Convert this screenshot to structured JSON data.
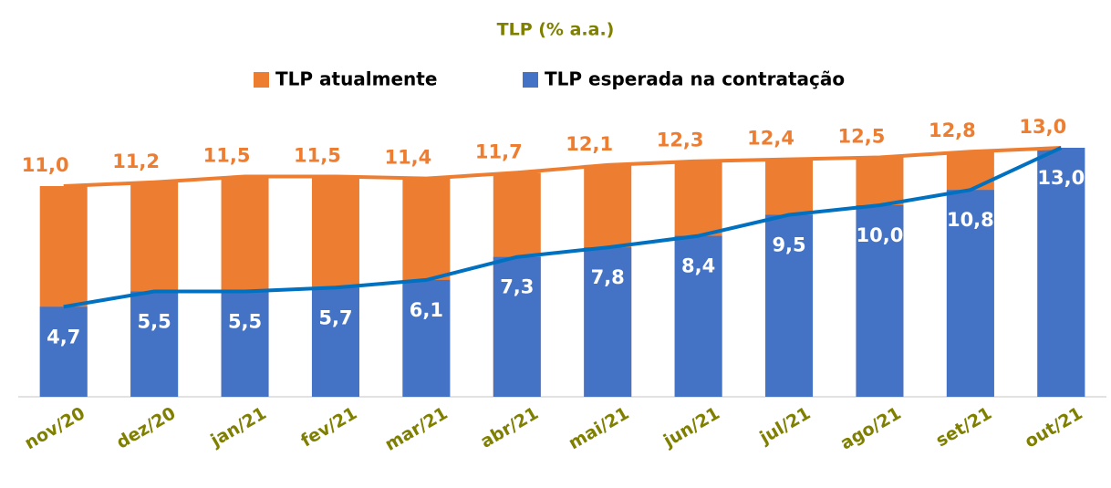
{
  "chart_data": {
    "type": "bar_line_overlay",
    "title": "TLP (% a.a.)",
    "categories": [
      "nov/20",
      "dez/20",
      "jan/21",
      "fev/21",
      "mar/21",
      "abr/21",
      "mai/21",
      "jun/21",
      "jul/21",
      "ago/21",
      "set/21",
      "out/21"
    ],
    "series": [
      {
        "name": "TLP atualmente",
        "color": "#ed7d31",
        "line_color": "#ed7d31",
        "values": [
          11.0,
          11.2,
          11.5,
          11.5,
          11.4,
          11.7,
          12.1,
          12.3,
          12.4,
          12.5,
          12.8,
          13.0
        ],
        "value_labels": [
          "11,0",
          "11,2",
          "11,5",
          "11,5",
          "11,4",
          "11,7",
          "12,1",
          "12,3",
          "12,4",
          "12,5",
          "12,8",
          "13,0"
        ]
      },
      {
        "name": "TLP esperada na contratação",
        "color": "#4472c4",
        "line_color": "#0070c0",
        "values": [
          4.7,
          5.5,
          5.5,
          5.7,
          6.1,
          7.3,
          7.8,
          8.4,
          9.5,
          10.0,
          10.8,
          13.0
        ],
        "value_labels": [
          "4,7",
          "5,5",
          "5,5",
          "5,7",
          "6,1",
          "7,3",
          "7,8",
          "8,4",
          "9,5",
          "10,0",
          "10,8",
          "13,0"
        ]
      }
    ],
    "ylim": [
      0,
      13
    ],
    "legend": "top"
  }
}
